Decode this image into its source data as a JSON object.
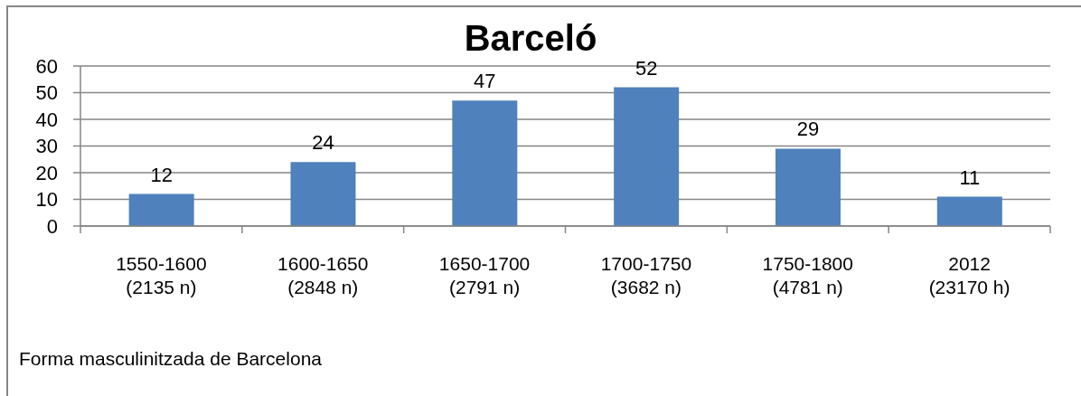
{
  "chart_data": {
    "type": "bar",
    "title": "Barceló",
    "categories": [
      "1550-1600\n(2135 n)",
      "1600-1650\n(2848 n)",
      "1650-1700\n(2791 n)",
      "1700-1750\n(3682 n)",
      "1750-1800\n(4781 n)",
      "2012\n(23170 h)"
    ],
    "values": [
      12,
      24,
      47,
      52,
      29,
      11
    ],
    "color": "#4f81bd",
    "ylim": [
      0,
      60
    ],
    "yticks": [
      0,
      10,
      20,
      30,
      40,
      50,
      60
    ],
    "grid": "y",
    "data_labels": true,
    "annotations": [
      "Forma masculinitzada de Barcelona"
    ]
  }
}
